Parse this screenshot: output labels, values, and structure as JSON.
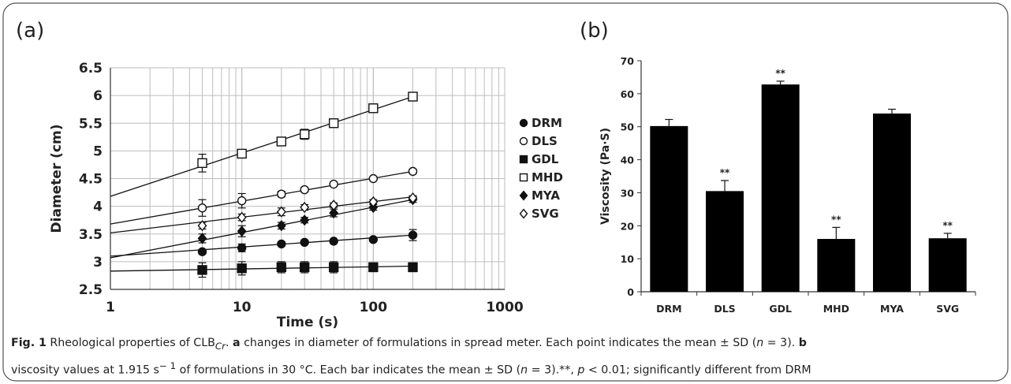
{
  "panels": {
    "a_label": "(a)",
    "b_label": "(b)"
  },
  "caption": {
    "fig": "Fig. 1",
    "t1": " Rheological properties of CLB",
    "sub": "Cr",
    "t2": ". ",
    "a": "a",
    "t3": " changes in diameter of formulations in spread meter. Each point indicates the mean ± SD (",
    "n1": "n",
    "t4": " = 3). ",
    "b": "b",
    "t5": "viscosity values at 1.915 s",
    "sup": "− 1",
    "t6": " of formulations in 30 °C. Each bar indicates the mean ± SD (",
    "n2": "n",
    "t7": " = 3).**, ",
    "p": "p",
    "t8": " < 0.01; significantly different from DRM"
  },
  "chart_data": [
    {
      "type": "scatter",
      "xscale": "log",
      "xlabel": "Time (s)",
      "ylabel": "Diameter (cm)",
      "xlim": [
        1,
        1000
      ],
      "ylim": [
        2.5,
        6.5
      ],
      "xticks": [
        "1",
        "10",
        "100",
        "1000"
      ],
      "yticks": [
        "2.5",
        "3",
        "3.5",
        "4",
        "4.5",
        "5",
        "5.5",
        "6",
        "6.5"
      ],
      "grid": true,
      "legend_position": "right",
      "x": [
        5,
        10,
        20,
        30,
        50,
        100,
        200
      ],
      "series": [
        {
          "name": "DRM",
          "marker": "filled-circle",
          "values": [
            3.18,
            3.25,
            3.32,
            3.35,
            3.37,
            3.4,
            3.48
          ],
          "err": [
            0.04,
            0.07,
            0.03,
            0.03,
            0.03,
            0.03,
            0.1
          ],
          "fit": [
            3.1,
            3.48
          ]
        },
        {
          "name": "DLS",
          "marker": "open-circle",
          "values": [
            3.97,
            4.1,
            4.22,
            4.3,
            4.4,
            4.5,
            4.63
          ],
          "err": [
            0.15,
            0.13,
            0.05,
            0.04,
            0.03,
            0.03,
            0.04
          ],
          "fit": [
            3.68,
            4.63
          ]
        },
        {
          "name": "GDL",
          "marker": "filled-square",
          "values": [
            2.85,
            2.88,
            2.9,
            2.9,
            2.9,
            2.9,
            2.9
          ],
          "err": [
            0.13,
            0.12,
            0.1,
            0.1,
            0.1,
            0.08,
            0.08
          ],
          "fit": [
            2.83,
            2.92
          ]
        },
        {
          "name": "MHD",
          "marker": "open-square",
          "values": [
            4.78,
            4.95,
            5.17,
            5.3,
            5.5,
            5.77,
            5.98
          ],
          "err": [
            0.16,
            0.06,
            0.05,
            0.09,
            0.05,
            0.05,
            0.05
          ],
          "fit": [
            4.18,
            5.98
          ]
        },
        {
          "name": "MYA",
          "marker": "filled-diamond",
          "values": [
            3.42,
            3.55,
            3.65,
            3.75,
            3.88,
            3.98,
            4.12
          ],
          "err": [
            0.08,
            0.1,
            0.06,
            0.05,
            0.07,
            0.05,
            0.05
          ],
          "fit": [
            3.07,
            4.12
          ]
        },
        {
          "name": "SVG",
          "marker": "open-diamond",
          "values": [
            3.65,
            3.8,
            3.9,
            3.98,
            4.02,
            4.08,
            4.15
          ],
          "err": [
            0.06,
            0.06,
            0.07,
            0.05,
            0.04,
            0.04,
            0.04
          ],
          "fit": [
            3.52,
            4.17
          ]
        }
      ]
    },
    {
      "type": "bar",
      "categories": [
        "DRM",
        "DLS",
        "GDL",
        "MHD",
        "MYA",
        "SVG"
      ],
      "values": [
        50.2,
        30.5,
        62.8,
        16.0,
        54.0,
        16.2
      ],
      "err": [
        2.0,
        3.2,
        1.0,
        3.5,
        1.3,
        1.5
      ],
      "significance": [
        "",
        "**",
        "**",
        "**",
        "",
        "**"
      ],
      "ylabel": "Viscosity (Pa·S)",
      "ylim": [
        0,
        70
      ],
      "yticks": [
        "0",
        "10",
        "20",
        "30",
        "40",
        "50",
        "60",
        "70"
      ],
      "grid": false
    }
  ]
}
